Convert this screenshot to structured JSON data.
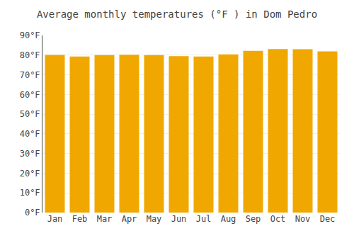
{
  "chart_data": {
    "type": "bar",
    "title": "Average monthly temperatures (°F ) in Dom Pedro",
    "categories": [
      "Jan",
      "Feb",
      "Mar",
      "Apr",
      "May",
      "Jun",
      "Jul",
      "Aug",
      "Sep",
      "Oct",
      "Nov",
      "Dec"
    ],
    "values": [
      80.1,
      79.3,
      80.0,
      80.2,
      80.0,
      79.5,
      79.3,
      80.4,
      82.2,
      83.1,
      83.0,
      81.9
    ],
    "color": "#F0A800",
    "ylim": [
      0,
      90
    ],
    "yticks": [
      {
        "value": 0,
        "label": "0°F"
      },
      {
        "value": 10,
        "label": "10°F"
      },
      {
        "value": 20,
        "label": "20°F"
      },
      {
        "value": 30,
        "label": "30°F"
      },
      {
        "value": 40,
        "label": "40°F"
      },
      {
        "value": 50,
        "label": "50°F"
      },
      {
        "value": 60,
        "label": "60°F"
      },
      {
        "value": 70,
        "label": "70°F"
      },
      {
        "value": 80,
        "label": "80°F"
      },
      {
        "value": 90,
        "label": "90°F"
      }
    ],
    "grid": true
  }
}
